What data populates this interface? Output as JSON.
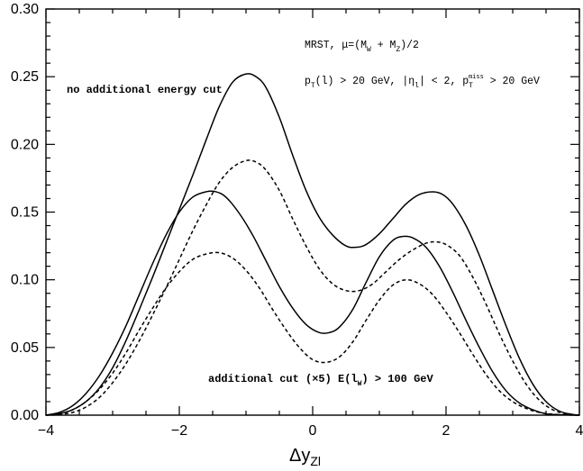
{
  "chart_data": {
    "type": "line",
    "xlabel": "Δy",
    "xlabel_sub": "Zl",
    "ylabel": "",
    "xlim": [
      -4,
      4
    ],
    "ylim": [
      0,
      0.3
    ],
    "x_ticks": [
      -4,
      -2,
      0,
      2,
      4
    ],
    "x_tick_labels": [
      "−4",
      "−2",
      "0",
      "2",
      "4"
    ],
    "y_ticks": [
      0,
      0.05,
      0.1,
      0.15,
      0.2,
      0.25,
      0.3
    ],
    "y_tick_labels": [
      "0.00",
      "0.05",
      "0.10",
      "0.15",
      "0.20",
      "0.25",
      "0.30"
    ],
    "grid": false,
    "annotations": {
      "pdf": "MRST, μ=(M",
      "pdf_sub_w": "W",
      "pdf_plus": " + M",
      "pdf_sub_z": "Z",
      "pdf_end": ")/2",
      "cuts_a": "p",
      "cuts_a_sub": "T",
      "cuts_b": "(l) > 20 GeV, |η",
      "cuts_b_sub": "l",
      "cuts_c": "| < 2, p",
      "cuts_c_sub": "T",
      "cuts_c_sup": "miss",
      "cuts_d": " > 20 GeV",
      "upper_label": "no additional energy cut",
      "lower_label_a": "additional cut (×5)  E(l",
      "lower_label_sub": "W",
      "lower_label_b": ") > 100 GeV"
    },
    "series": [
      {
        "style": "solid",
        "x": [
          -4,
          -3.8,
          -3.6,
          -3.4,
          -3.2,
          -3.0,
          -2.8,
          -2.6,
          -2.4,
          -2.2,
          -2.0,
          -1.8,
          -1.6,
          -1.4,
          -1.2,
          -1.0,
          -0.85,
          -0.7,
          -0.5,
          -0.3,
          -0.1,
          0.1,
          0.3,
          0.5,
          0.65,
          0.8,
          1.0,
          1.2,
          1.4,
          1.6,
          1.8,
          1.95,
          2.1,
          2.3,
          2.5,
          2.7,
          2.9,
          3.1,
          3.3,
          3.5,
          3.7,
          3.9,
          4.0
        ],
        "y": [
          0,
          0.001,
          0.004,
          0.01,
          0.02,
          0.035,
          0.055,
          0.078,
          0.102,
          0.127,
          0.152,
          0.177,
          0.203,
          0.228,
          0.246,
          0.252,
          0.25,
          0.242,
          0.22,
          0.192,
          0.166,
          0.146,
          0.133,
          0.125,
          0.124,
          0.126,
          0.134,
          0.145,
          0.156,
          0.163,
          0.165,
          0.163,
          0.156,
          0.14,
          0.118,
          0.092,
          0.066,
          0.042,
          0.023,
          0.01,
          0.003,
          0.0005,
          0
        ]
      },
      {
        "style": "dashed",
        "x": [
          -4,
          -3.8,
          -3.6,
          -3.4,
          -3.2,
          -3.0,
          -2.8,
          -2.6,
          -2.4,
          -2.2,
          -2.0,
          -1.8,
          -1.6,
          -1.4,
          -1.2,
          -1.0,
          -0.85,
          -0.7,
          -0.5,
          -0.3,
          -0.1,
          0.1,
          0.3,
          0.5,
          0.7,
          0.9,
          1.1,
          1.3,
          1.5,
          1.7,
          1.85,
          2.0,
          2.2,
          2.4,
          2.6,
          2.8,
          3.0,
          3.2,
          3.4,
          3.6,
          3.8,
          4.0
        ],
        "y": [
          0,
          0.0005,
          0.002,
          0.006,
          0.013,
          0.024,
          0.038,
          0.055,
          0.074,
          0.094,
          0.115,
          0.136,
          0.155,
          0.172,
          0.183,
          0.188,
          0.187,
          0.181,
          0.166,
          0.145,
          0.125,
          0.108,
          0.097,
          0.092,
          0.092,
          0.097,
          0.106,
          0.115,
          0.122,
          0.127,
          0.128,
          0.126,
          0.118,
          0.102,
          0.082,
          0.06,
          0.04,
          0.023,
          0.011,
          0.004,
          0.001,
          0
        ]
      },
      {
        "style": "solid",
        "x": [
          -4,
          -3.8,
          -3.6,
          -3.4,
          -3.2,
          -3.0,
          -2.8,
          -2.6,
          -2.4,
          -2.2,
          -2.0,
          -1.8,
          -1.6,
          -1.45,
          -1.3,
          -1.1,
          -0.9,
          -0.7,
          -0.5,
          -0.3,
          -0.1,
          0.1,
          0.25,
          0.4,
          0.6,
          0.8,
          1.0,
          1.2,
          1.35,
          1.5,
          1.7,
          1.9,
          2.1,
          2.3,
          2.5,
          2.7,
          2.9,
          3.1,
          3.3,
          3.5,
          3.7,
          4.0
        ],
        "y": [
          0,
          0.002,
          0.007,
          0.016,
          0.029,
          0.046,
          0.066,
          0.089,
          0.112,
          0.133,
          0.15,
          0.161,
          0.165,
          0.165,
          0.161,
          0.149,
          0.133,
          0.114,
          0.095,
          0.079,
          0.067,
          0.061,
          0.061,
          0.065,
          0.078,
          0.098,
          0.117,
          0.129,
          0.132,
          0.131,
          0.124,
          0.11,
          0.091,
          0.07,
          0.05,
          0.032,
          0.018,
          0.009,
          0.004,
          0.001,
          0.0003,
          0
        ]
      },
      {
        "style": "dashed",
        "x": [
          -4,
          -3.8,
          -3.6,
          -3.4,
          -3.2,
          -3.0,
          -2.8,
          -2.6,
          -2.4,
          -2.2,
          -2.0,
          -1.8,
          -1.6,
          -1.4,
          -1.2,
          -1.0,
          -0.8,
          -0.6,
          -0.4,
          -0.2,
          0.0,
          0.2,
          0.4,
          0.6,
          0.8,
          1.0,
          1.2,
          1.4,
          1.6,
          1.8,
          2.0,
          2.2,
          2.4,
          2.6,
          2.8,
          3.0,
          3.2,
          3.4,
          3.6,
          3.8,
          4.0
        ],
        "y": [
          0,
          0.001,
          0.004,
          0.01,
          0.019,
          0.031,
          0.046,
          0.063,
          0.079,
          0.094,
          0.106,
          0.115,
          0.119,
          0.12,
          0.116,
          0.107,
          0.094,
          0.078,
          0.063,
          0.05,
          0.041,
          0.039,
          0.043,
          0.054,
          0.07,
          0.085,
          0.096,
          0.1,
          0.097,
          0.089,
          0.076,
          0.061,
          0.045,
          0.03,
          0.018,
          0.01,
          0.005,
          0.002,
          0.0007,
          0.0002,
          0
        ]
      }
    ]
  }
}
